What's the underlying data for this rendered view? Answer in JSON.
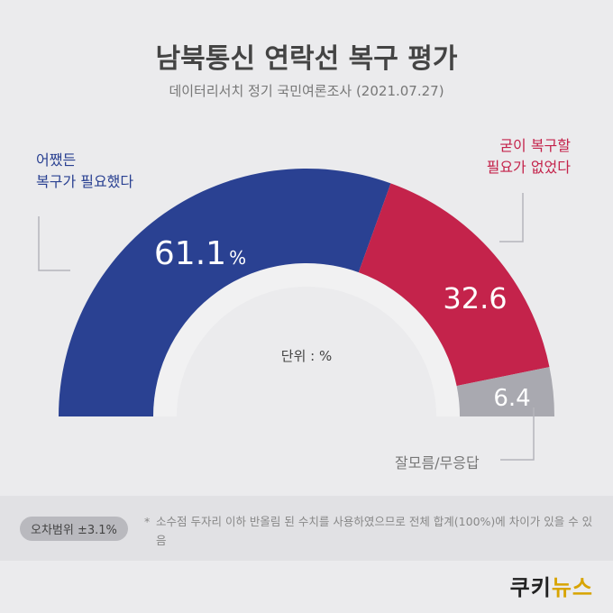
{
  "header": {
    "title": "남북통신 연락선 복구 평가",
    "subtitle": "데이터리서치 정기 국민여론조사 (2021.07.27)"
  },
  "chart_data": {
    "type": "pie",
    "unit_label": "단위 : %",
    "slices": [
      {
        "name": "어쨌든 복구가 필요했다",
        "value": 61.1,
        "value_label": "61.1",
        "suffix": "%",
        "color": "#2a4192"
      },
      {
        "name": "굳이 복구할 필요가 없었다",
        "value": 32.6,
        "value_label": "32.6",
        "suffix": "",
        "color": "#c4234b"
      },
      {
        "name": "잘모름/무응답",
        "value": 6.4,
        "value_label": "6.4",
        "suffix": "",
        "color": "#a9a9b0"
      }
    ]
  },
  "labels": {
    "blue_line1": "어쨌든",
    "blue_line2": "복구가 필요했다",
    "red_line1": "굳이 복구할",
    "red_line2": "필요가 없었다",
    "gray": "잘모름/무응답"
  },
  "footer": {
    "margin_of_error": "오차범위 ±3.1%",
    "note_mark": "*",
    "note_text": "소수점 두자리 이하 반올림 된 수치를 사용하였으므로 전체 합계(100%)에 차이가 있을 수 있음"
  },
  "brand": {
    "logo_part1": "쿠키",
    "logo_part2": "뉴스"
  }
}
